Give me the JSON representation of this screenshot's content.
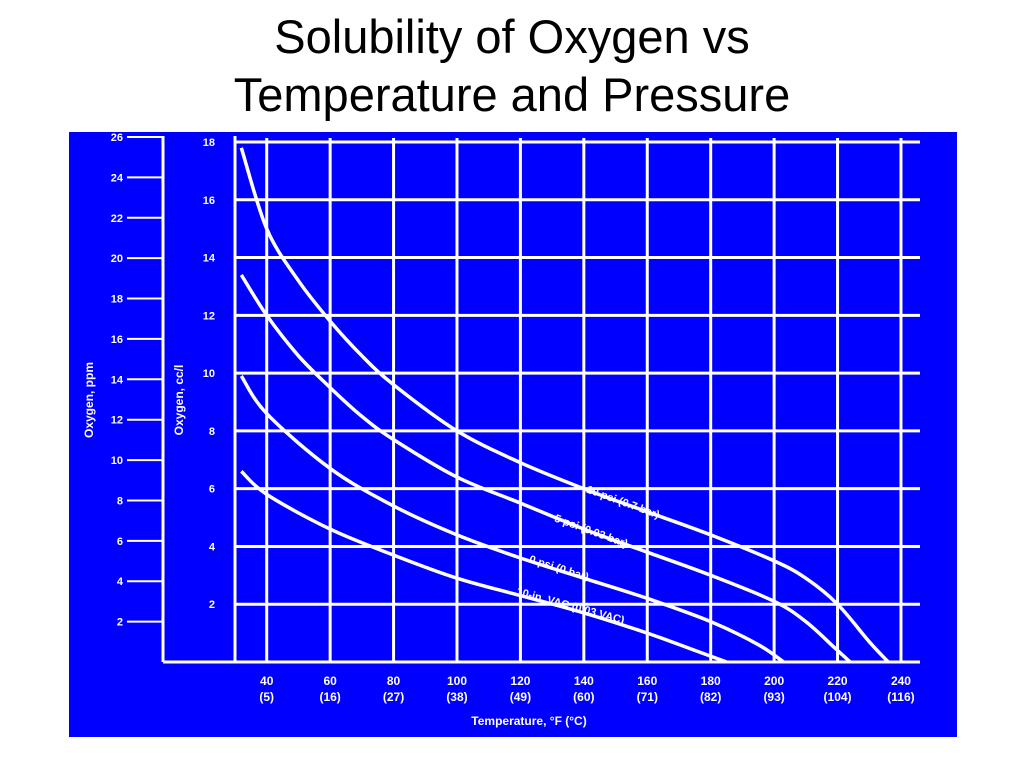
{
  "colors": {
    "panel_background": "#0000ff",
    "lines": "#ffffff",
    "title_text": "#000000"
  },
  "title": {
    "line1": "Solubility of Oxygen vs",
    "line2": "Temperature and Pressure"
  },
  "chart_data": {
    "type": "line",
    "title": "Solubility of Oxygen vs Temperature and Pressure",
    "xlabel": "Temperature, °F (°C)",
    "ylabel": "Oxygen, cc/l",
    "ylabel_secondary": "Oxygen, ppm",
    "xlim": [
      30,
      246
    ],
    "ylim": [
      0,
      18
    ],
    "ylim_secondary": [
      0,
      26
    ],
    "grid": true,
    "x_ticks": [
      {
        "value": 40,
        "label": "40",
        "sublabel": "(5)"
      },
      {
        "value": 60,
        "label": "60",
        "sublabel": "(16)"
      },
      {
        "value": 80,
        "label": "80",
        "sublabel": "(27)"
      },
      {
        "value": 100,
        "label": "100",
        "sublabel": "(38)"
      },
      {
        "value": 120,
        "label": "120",
        "sublabel": "(49)"
      },
      {
        "value": 140,
        "label": "140",
        "sublabel": "(60)"
      },
      {
        "value": 160,
        "label": "160",
        "sublabel": "(71)"
      },
      {
        "value": 180,
        "label": "180",
        "sublabel": "(82)"
      },
      {
        "value": 200,
        "label": "200",
        "sublabel": "(93)"
      },
      {
        "value": 220,
        "label": "220",
        "sublabel": "(104)"
      },
      {
        "value": 240,
        "label": "240",
        "sublabel": "(116)"
      }
    ],
    "y_ticks": [
      {
        "value": 2,
        "label": "2"
      },
      {
        "value": 4,
        "label": "4"
      },
      {
        "value": 6,
        "label": "6"
      },
      {
        "value": 8,
        "label": "8"
      },
      {
        "value": 10,
        "label": "10"
      },
      {
        "value": 12,
        "label": "12"
      },
      {
        "value": 14,
        "label": "14"
      },
      {
        "value": 16,
        "label": "16"
      },
      {
        "value": 18,
        "label": "18"
      }
    ],
    "y_ticks_secondary": [
      {
        "value": 2,
        "label": "2"
      },
      {
        "value": 4,
        "label": "4"
      },
      {
        "value": 6,
        "label": "6"
      },
      {
        "value": 8,
        "label": "8"
      },
      {
        "value": 10,
        "label": "10"
      },
      {
        "value": 12,
        "label": "12"
      },
      {
        "value": 14,
        "label": "14"
      },
      {
        "value": 16,
        "label": "16"
      },
      {
        "value": 18,
        "label": "18"
      },
      {
        "value": 20,
        "label": "20"
      },
      {
        "value": 22,
        "label": "22"
      },
      {
        "value": 24,
        "label": "24"
      },
      {
        "value": 26,
        "label": "26"
      }
    ],
    "series": [
      {
        "name": "10 psi (0.7 bar)",
        "x": [
          32,
          40,
          50,
          60,
          70,
          80,
          100,
          120,
          140,
          160,
          180,
          200,
          210,
          220,
          230,
          236
        ],
        "y": [
          17.8,
          15.0,
          13.2,
          11.8,
          10.6,
          9.6,
          8.0,
          6.9,
          6.0,
          5.2,
          4.4,
          3.5,
          2.9,
          2.0,
          0.7,
          0
        ]
      },
      {
        "name": "5 psi (0.03 bar)",
        "x": [
          32,
          40,
          50,
          60,
          70,
          80,
          100,
          120,
          140,
          160,
          180,
          200,
          210,
          219,
          224
        ],
        "y": [
          13.4,
          12.0,
          10.6,
          9.5,
          8.5,
          7.7,
          6.4,
          5.5,
          4.6,
          3.8,
          3.0,
          2.1,
          1.4,
          0.5,
          0
        ]
      },
      {
        "name": "0 psi (0 bar)",
        "x": [
          32,
          40,
          60,
          80,
          100,
          120,
          140,
          160,
          180,
          195,
          203
        ],
        "y": [
          9.9,
          8.6,
          6.7,
          5.4,
          4.4,
          3.6,
          2.9,
          2.2,
          1.4,
          0.6,
          0
        ]
      },
      {
        "name": "10-in. VAC (0.03 VAC)",
        "x": [
          32,
          40,
          60,
          80,
          100,
          120,
          140,
          160,
          175,
          185
        ],
        "y": [
          6.6,
          5.8,
          4.6,
          3.7,
          2.9,
          2.3,
          1.7,
          1.0,
          0.4,
          0
        ]
      }
    ],
    "annotations": [
      "10 psi (0.7 bar)",
      "5 psi (0.03 bar)",
      "0 psi (0 bar)",
      "10-in. VAC (0.03 VAC)"
    ]
  }
}
